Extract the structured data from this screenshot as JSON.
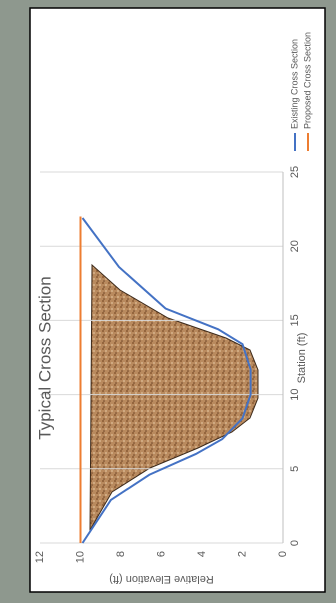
{
  "chart_data": {
    "type": "line",
    "title": "Typical Cross Section",
    "x_label": "Station (ft)",
    "y_label": "Relative Elevation (ft)",
    "xlim": [
      0,
      25
    ],
    "xticks": [
      0,
      5,
      10,
      15,
      20,
      25
    ],
    "ylim": [
      0,
      12
    ],
    "yticks": [
      0,
      2,
      4,
      6,
      8,
      10,
      12
    ],
    "grid": true,
    "legend": "right",
    "series": [
      {
        "name": "Existing Cross Section",
        "color": "#4472c4",
        "x": [
          0,
          2.9,
          4.6,
          6,
          7,
          8.4,
          10,
          11.7,
          13.4,
          14.4,
          15.8,
          18.6,
          21.9
        ],
        "values": [
          9.9,
          8.5,
          6.6,
          4.3,
          3.0,
          2.0,
          1.6,
          1.6,
          2.0,
          3.2,
          5.8,
          8.1,
          9.9
        ]
      },
      {
        "name": "Proposed Cross Section",
        "color": "#ed7d31",
        "x": [
          0,
          22
        ],
        "values": [
          10,
          10
        ]
      }
    ]
  }
}
